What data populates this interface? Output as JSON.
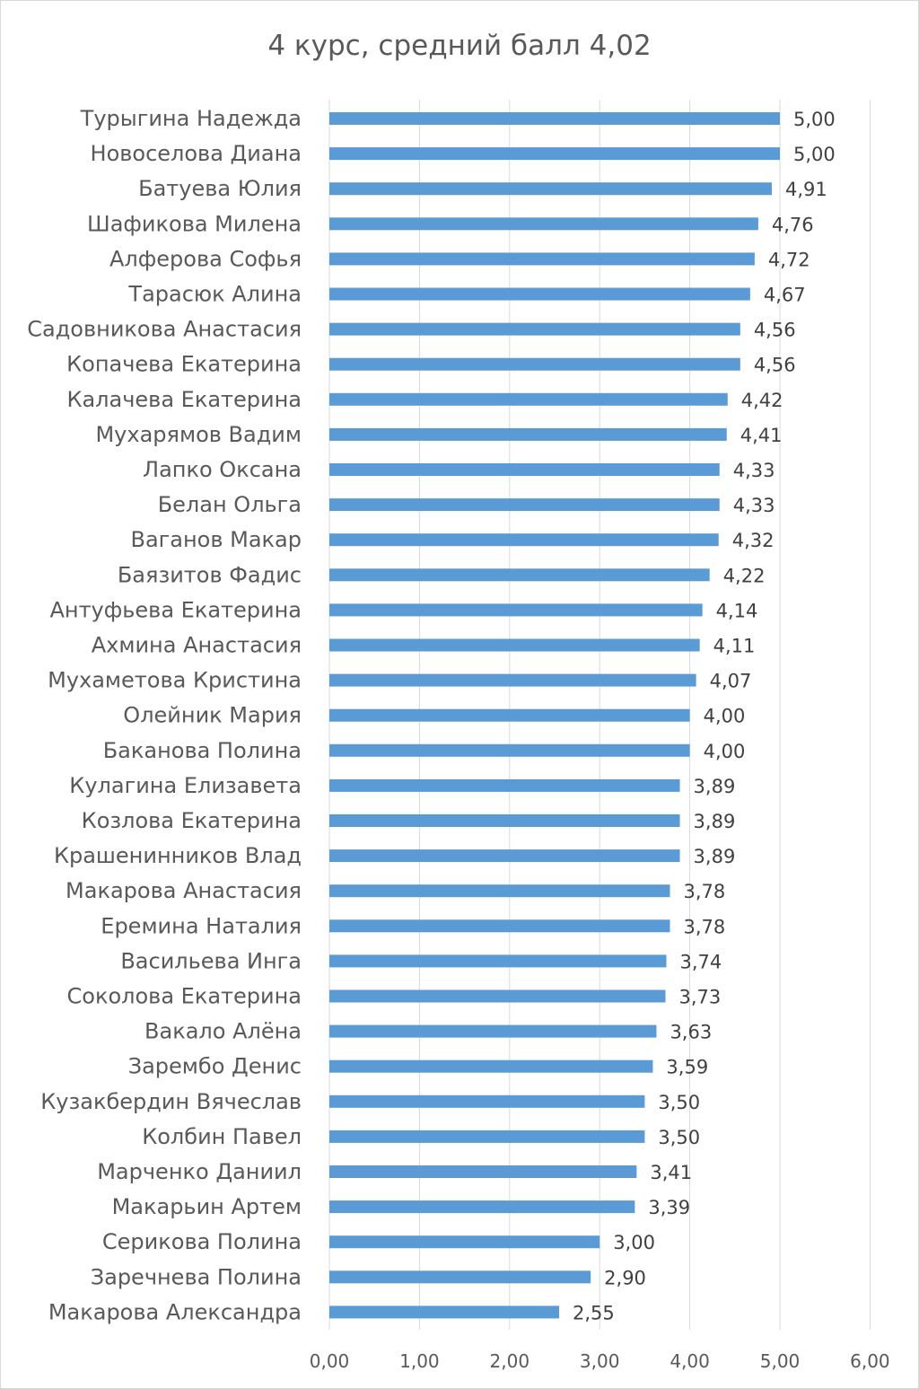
{
  "chart_data": {
    "type": "bar",
    "orientation": "horizontal",
    "title": "4 курс, средний балл 4,02",
    "categories": [
      "Турыгина Надежда",
      "Новоселова Диана",
      "Батуева Юлия",
      "Шафикова Милена",
      "Алферова Софья",
      "Тарасюк Алина",
      "Садовникова Анастасия",
      "Копачева Екатерина",
      "Калачева Екатерина",
      "Мухарямов Вадим",
      "Лапко Оксана",
      "Белан Ольга",
      "Ваганов Макар",
      "Баязитов Фадис",
      "Антуфьева Екатерина",
      "Ахмина Анастасия",
      "Мухаметова Кристина",
      "Олейник Мария",
      "Баканова Полина",
      "Кулагина Елизавета",
      "Козлова Екатерина",
      "Крашенинников Влад",
      "Макарова Анастасия",
      "Еремина Наталия",
      "Васильева Инга",
      "Соколова Екатерина",
      "Вакало Алёна",
      "Зарембо Денис",
      "Кузакбердин Вячеслав",
      "Колбин Павел",
      "Марченко Даниил",
      "Макарьин Артем",
      "Серикова Полина",
      "Заречнева Полина",
      "Макарова Александра"
    ],
    "values": [
      5.0,
      5.0,
      4.91,
      4.76,
      4.72,
      4.67,
      4.56,
      4.56,
      4.42,
      4.41,
      4.33,
      4.33,
      4.32,
      4.22,
      4.14,
      4.11,
      4.07,
      4.0,
      4.0,
      3.89,
      3.89,
      3.89,
      3.78,
      3.78,
      3.74,
      3.73,
      3.63,
      3.59,
      3.5,
      3.5,
      3.41,
      3.39,
      3.0,
      2.9,
      2.55
    ],
    "value_labels": [
      "5,00",
      "5,00",
      "4,91",
      "4,76",
      "4,72",
      "4,67",
      "4,56",
      "4,56",
      "4,42",
      "4,41",
      "4,33",
      "4,33",
      "4,32",
      "4,22",
      "4,14",
      "4,11",
      "4,07",
      "4,00",
      "4,00",
      "3,89",
      "3,89",
      "3,89",
      "3,78",
      "3,78",
      "3,74",
      "3,73",
      "3,63",
      "3,59",
      "3,50",
      "3,50",
      "3,41",
      "3,39",
      "3,00",
      "2,90",
      "2,55"
    ],
    "xlim": [
      0,
      6
    ],
    "x_ticks": [
      0,
      1,
      2,
      3,
      4,
      5,
      6
    ],
    "x_tick_labels": [
      "0,00",
      "1,00",
      "2,00",
      "3,00",
      "4,00",
      "5,00",
      "6,00"
    ],
    "grid": true,
    "legend": "none",
    "bar_color": "#5b9bd5"
  }
}
